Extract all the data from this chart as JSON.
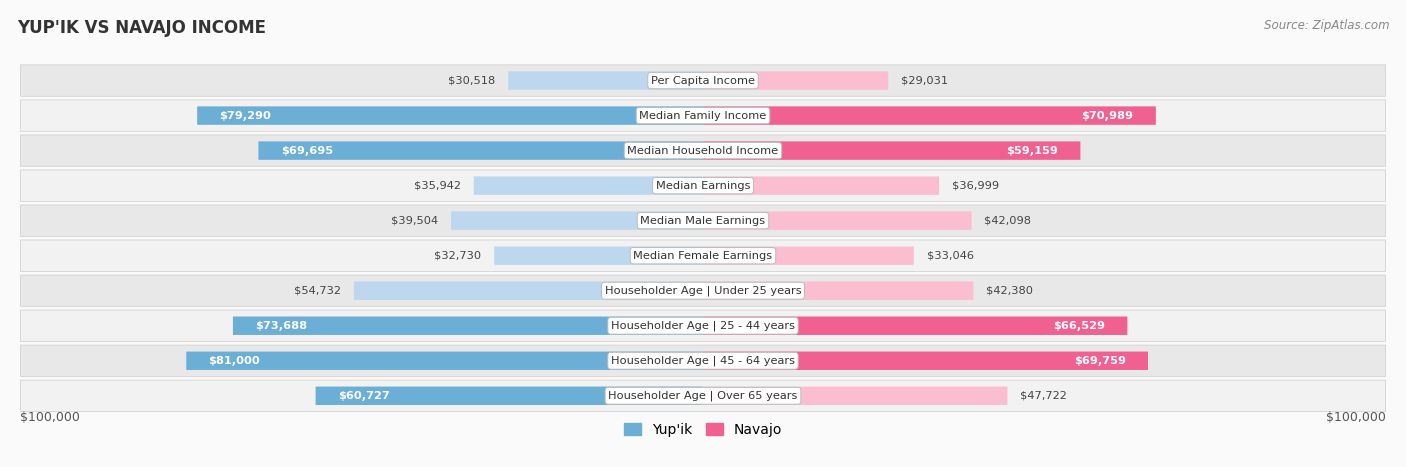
{
  "title": "YUP'IK VS NAVAJO INCOME",
  "source": "Source: ZipAtlas.com",
  "categories": [
    "Per Capita Income",
    "Median Family Income",
    "Median Household Income",
    "Median Earnings",
    "Median Male Earnings",
    "Median Female Earnings",
    "Householder Age | Under 25 years",
    "Householder Age | 25 - 44 years",
    "Householder Age | 45 - 64 years",
    "Householder Age | Over 65 years"
  ],
  "yupik_values": [
    30518,
    79290,
    69695,
    35942,
    39504,
    32730,
    54732,
    73688,
    81000,
    60727
  ],
  "navajo_values": [
    29031,
    70989,
    59159,
    36999,
    42098,
    33046,
    42380,
    66529,
    69759,
    47722
  ],
  "yupik_labels": [
    "$30,518",
    "$79,290",
    "$69,695",
    "$35,942",
    "$39,504",
    "$32,730",
    "$54,732",
    "$73,688",
    "$81,000",
    "$60,727"
  ],
  "navajo_labels": [
    "$29,031",
    "$70,989",
    "$59,159",
    "$36,999",
    "$42,098",
    "$33,046",
    "$42,380",
    "$66,529",
    "$69,759",
    "$47,722"
  ],
  "max_value": 100000,
  "yupik_color_strong": "#6BAED6",
  "yupik_color_light": "#BDD7EE",
  "navajo_color_strong": "#F06090",
  "navajo_color_light": "#FBBED0",
  "row_bg_dark": "#e8e8e8",
  "row_bg_light": "#f2f2f2",
  "xlabel_left": "$100,000",
  "xlabel_right": "$100,000",
  "legend_yupik": "Yup'ik",
  "legend_navajo": "Navajo",
  "label_inside_threshold": 55000,
  "label_inside_threshold_navajo": 55000,
  "fig_bg": "#fafafa"
}
